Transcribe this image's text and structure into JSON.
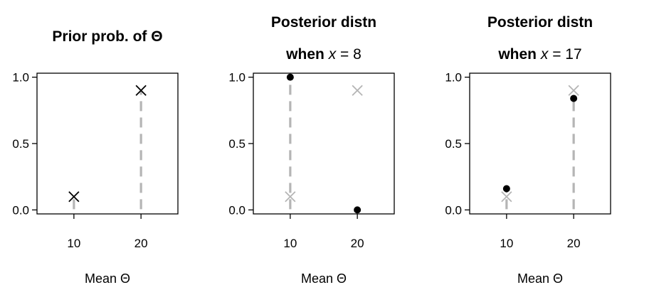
{
  "chart_data": [
    {
      "type": "scatter",
      "title": "Prior prob. of Θ",
      "title_line2": null,
      "xlabel": "Mean Θ",
      "ylabel": "",
      "xlim": [
        4.5,
        25.5
      ],
      "ylim": [
        -0.03,
        1.03
      ],
      "xticks": [
        10,
        20
      ],
      "yticks": [
        "0.0",
        "0.5",
        "1.0"
      ],
      "series": [
        {
          "marker": "x",
          "color": "#000000",
          "stem": "#b5b5b5",
          "x": [
            10,
            20
          ],
          "y": [
            0.1,
            0.9
          ]
        }
      ]
    },
    {
      "type": "scatter",
      "title": "Posterior distn",
      "title_line2": {
        "prefix": "when ",
        "var": "x",
        "suffix": " = 8"
      },
      "xlabel": "Mean Θ",
      "ylabel": "",
      "xlim": [
        4.5,
        25.5
      ],
      "ylim": [
        -0.03,
        1.03
      ],
      "xticks": [
        10,
        20
      ],
      "yticks": [
        "0.0",
        "0.5",
        "1.0"
      ],
      "series": [
        {
          "marker": "x",
          "color": "#b5b5b5",
          "x": [
            10,
            20
          ],
          "y": [
            0.1,
            0.9
          ]
        },
        {
          "marker": "dot",
          "color": "#000000",
          "stem": "#b5b5b5",
          "x": [
            10,
            20
          ],
          "y": [
            1.0,
            0.0
          ]
        }
      ]
    },
    {
      "type": "scatter",
      "title": "Posterior distn",
      "title_line2": {
        "prefix": "when ",
        "var": "x",
        "suffix": " = 17"
      },
      "xlabel": "Mean Θ",
      "ylabel": "",
      "xlim": [
        4.5,
        25.5
      ],
      "ylim": [
        -0.03,
        1.03
      ],
      "xticks": [
        10,
        20
      ],
      "yticks": [
        "0.0",
        "0.5",
        "1.0"
      ],
      "series": [
        {
          "marker": "x",
          "color": "#b5b5b5",
          "x": [
            10,
            20
          ],
          "y": [
            0.1,
            0.9
          ]
        },
        {
          "marker": "dot",
          "color": "#000000",
          "stem": "#b5b5b5",
          "x": [
            10,
            20
          ],
          "y": [
            0.16,
            0.84
          ]
        }
      ]
    }
  ]
}
